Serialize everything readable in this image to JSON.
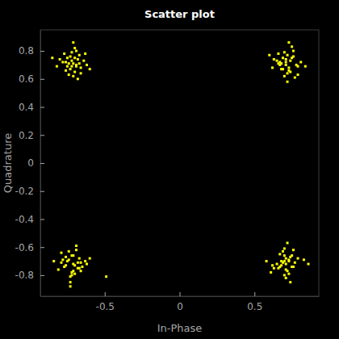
{
  "chart_data": {
    "type": "scatter",
    "title": "Scatter plot",
    "x_label": "In-Phase",
    "y_label": "Quadrature",
    "color": "#ffff00",
    "marker": "square",
    "grid": false,
    "xlim": [
      -0.93,
      0.93
    ],
    "ylim": [
      -0.95,
      0.95
    ],
    "xticks": [
      -0.5,
      0,
      0.5
    ],
    "yticks": [
      -0.8,
      -0.6,
      -0.4,
      -0.2,
      0,
      0.2,
      0.4,
      0.6,
      0.8
    ],
    "x": [
      -0.71,
      -0.68,
      -0.75,
      -0.66,
      -0.73,
      -0.7,
      -0.78,
      -0.64,
      -0.72,
      -0.69,
      -0.76,
      -0.67,
      -0.74,
      -0.71,
      -0.62,
      -0.8,
      -0.7,
      -0.73,
      -0.66,
      -0.77,
      -0.69,
      -0.72,
      -0.75,
      -0.68,
      -0.63,
      -0.82,
      -0.71,
      -0.74,
      -0.67,
      -0.7,
      -0.85,
      -0.6,
      -0.72,
      -0.69,
      -0.76,
      0.71,
      0.74,
      0.68,
      0.76,
      0.66,
      0.72,
      0.79,
      0.63,
      0.7,
      0.73,
      0.67,
      0.77,
      0.69,
      0.75,
      0.81,
      0.62,
      0.72,
      0.7,
      0.65,
      0.78,
      0.73,
      0.68,
      0.74,
      0.71,
      0.84,
      0.6,
      0.76,
      0.69,
      0.72,
      0.67,
      0.75,
      0.71,
      0.79,
      0.66,
      0.73,
      -0.71,
      -0.74,
      -0.68,
      -0.76,
      -0.66,
      -0.72,
      -0.79,
      -0.63,
      -0.7,
      -0.73,
      -0.67,
      -0.77,
      -0.69,
      -0.75,
      -0.81,
      -0.62,
      -0.72,
      -0.7,
      -0.65,
      -0.78,
      -0.73,
      -0.68,
      -0.74,
      -0.71,
      -0.84,
      -0.6,
      -0.76,
      -0.69,
      -0.72,
      -0.67,
      -0.49,
      -0.71,
      -0.79,
      -0.66,
      -0.73,
      0.7,
      0.67,
      0.74,
      0.65,
      0.72,
      0.69,
      0.77,
      0.63,
      0.73,
      0.7,
      0.75,
      0.68,
      0.73,
      0.7,
      0.61,
      0.79,
      0.71,
      0.74,
      0.67,
      0.76,
      0.68,
      0.71,
      0.76,
      0.69,
      0.62,
      0.83,
      0.72,
      0.73,
      0.66,
      0.71,
      0.86,
      0.58,
      0.71,
      0.7,
      0.75
    ],
    "values": [
      0.71,
      0.74,
      0.69,
      0.68,
      0.76,
      0.65,
      0.72,
      0.73,
      0.79,
      0.7,
      0.66,
      0.77,
      0.71,
      0.62,
      0.7,
      0.74,
      0.82,
      0.67,
      0.64,
      0.78,
      0.69,
      0.73,
      0.75,
      0.6,
      0.78,
      0.69,
      0.86,
      0.63,
      0.71,
      0.75,
      0.75,
      0.67,
      0.69,
      0.8,
      0.72,
      0.7,
      0.73,
      0.67,
      0.76,
      0.71,
      0.64,
      0.69,
      0.74,
      0.79,
      0.66,
      0.72,
      0.61,
      0.75,
      0.83,
      0.72,
      0.68,
      0.77,
      0.62,
      0.73,
      0.7,
      0.86,
      0.71,
      0.65,
      0.74,
      0.69,
      0.77,
      0.8,
      0.67,
      0.58,
      0.7,
      0.75,
      0.72,
      0.63,
      0.78,
      0.68,
      -0.72,
      -0.69,
      -0.75,
      -0.67,
      -0.71,
      -0.78,
      -0.64,
      -0.7,
      -0.73,
      -0.81,
      -0.68,
      -0.74,
      -0.62,
      -0.7,
      -0.76,
      -0.72,
      -0.66,
      -0.79,
      -0.74,
      -0.69,
      -0.85,
      -0.71,
      -0.63,
      -0.77,
      -0.7,
      -0.68,
      -0.73,
      -0.59,
      -0.8,
      -0.75,
      -0.81,
      -0.66,
      -0.71,
      -0.77,
      -0.88,
      -0.7,
      -0.74,
      -0.67,
      -0.72,
      -0.77,
      -0.63,
      -0.71,
      -0.75,
      -0.69,
      -0.8,
      -0.66,
      -0.73,
      -0.7,
      -0.61,
      -0.78,
      -0.68,
      -0.72,
      -0.85,
      -0.65,
      -0.74,
      -0.7,
      -0.76,
      -0.62,
      -0.71,
      -0.73,
      -0.69,
      -0.57,
      -0.79,
      -0.75,
      -0.68,
      -0.72,
      -0.7,
      -0.82,
      -0.66,
      -0.74
    ]
  }
}
